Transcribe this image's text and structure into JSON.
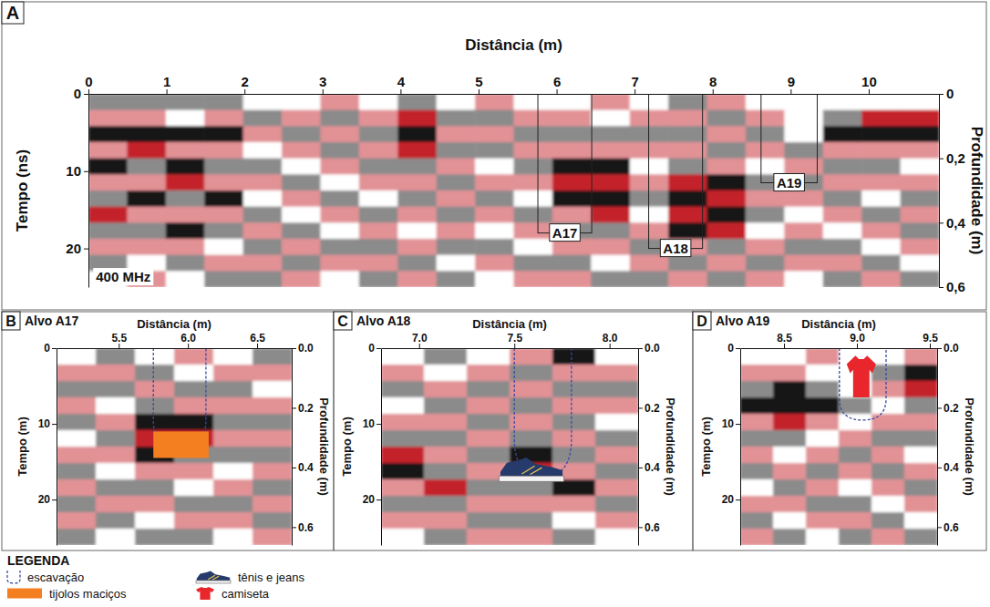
{
  "chart_data": [
    {
      "type": "heatmap",
      "panel": "A",
      "x_label": "Distância (m)",
      "y_label": "Tempo (ns)",
      "y2_label": "Profundidade (m)",
      "xlim": [
        0,
        10.9
      ],
      "xticks": [
        0,
        1,
        2,
        3,
        4,
        5,
        6,
        7,
        8,
        9,
        10
      ],
      "ylim": [
        0,
        25
      ],
      "yticks": [
        0,
        10,
        20
      ],
      "y2lim": [
        0,
        0.6
      ],
      "y2ticks": [
        0,
        {
          "value": 0.2,
          "label": "0,2"
        },
        {
          "value": 0.4,
          "label": "0,4"
        },
        {
          "value": 0.6,
          "label": "0,6"
        }
      ],
      "zlim": [
        -2,
        2
      ],
      "cells": [
        [
          -1,
          -1,
          -1,
          -1,
          0,
          0,
          1,
          0,
          -1,
          0,
          1,
          0,
          0,
          1,
          0,
          -1,
          1,
          0,
          0,
          0,
          0,
          0
        ],
        [
          1,
          1,
          0,
          1,
          -1,
          1,
          -1,
          1,
          2,
          -1,
          -1,
          1,
          1,
          0,
          1,
          1,
          -1,
          1,
          0,
          -1,
          2,
          2
        ],
        [
          -2,
          -2,
          -2,
          -2,
          1,
          -1,
          1,
          -1,
          -2,
          1,
          1,
          -1,
          -1,
          -1,
          -1,
          -1,
          1,
          -1,
          0,
          -2,
          -2,
          -2
        ],
        [
          1,
          2,
          1,
          1,
          0,
          1,
          -1,
          1,
          2,
          -1,
          -1,
          1,
          1,
          1,
          1,
          1,
          -1,
          1,
          -1,
          1,
          1,
          1
        ],
        [
          -2,
          -1,
          -2,
          -1,
          -1,
          0,
          1,
          -1,
          -1,
          1,
          0,
          -1,
          -2,
          -2,
          0,
          -1,
          1,
          0,
          1,
          -1,
          -1,
          0
        ],
        [
          1,
          1,
          2,
          1,
          1,
          -1,
          0,
          1,
          1,
          -1,
          1,
          1,
          2,
          2,
          1,
          2,
          -2,
          -1,
          -1,
          1,
          1,
          1
        ],
        [
          -1,
          -2,
          -1,
          -2,
          0,
          1,
          -1,
          0,
          -1,
          1,
          -1,
          0,
          -2,
          -2,
          -1,
          -2,
          2,
          1,
          1,
          -1,
          0,
          -1
        ],
        [
          2,
          1,
          1,
          1,
          -1,
          0,
          1,
          -1,
          1,
          -1,
          1,
          -1,
          1,
          2,
          0,
          2,
          -2,
          -1,
          0,
          1,
          -1,
          1
        ],
        [
          -1,
          -1,
          -2,
          -1,
          1,
          -1,
          0,
          1,
          0,
          1,
          0,
          1,
          -1,
          -1,
          1,
          -2,
          2,
          0,
          1,
          0,
          1,
          -1
        ],
        [
          1,
          1,
          1,
          0,
          -1,
          1,
          -1,
          -1,
          1,
          -1,
          -1,
          0,
          1,
          1,
          -1,
          1,
          -1,
          1,
          -1,
          -1,
          0,
          1
        ],
        [
          -1,
          0,
          -1,
          1,
          1,
          -1,
          1,
          1,
          -1,
          0,
          1,
          -1,
          -1,
          0,
          1,
          -1,
          1,
          -1,
          1,
          1,
          -1,
          0
        ],
        [
          0,
          1,
          0,
          -1,
          -1,
          1,
          0,
          -1,
          1,
          -1,
          0,
          1,
          1,
          -1,
          -1,
          1,
          -1,
          1,
          0,
          -1,
          1,
          -1
        ]
      ],
      "annotations": [
        {
          "text": "A17",
          "x": [
            5.76,
            6.45
          ],
          "y": [
            0,
            18
          ]
        },
        {
          "text": "A18",
          "x": [
            7.18,
            7.87
          ],
          "y": [
            0,
            20
          ]
        },
        {
          "text": "A19",
          "x": [
            8.62,
            9.34
          ],
          "y": [
            0,
            11.5
          ]
        },
        {
          "text": "400 MHz",
          "x": 0.05,
          "y": 24.3
        }
      ]
    },
    {
      "type": "heatmap",
      "panel": "B",
      "title": "Alvo A17",
      "x_label": "Distância (m)",
      "y_label": "Tempo (m)",
      "y2_label": "Profundidade (m)",
      "xlim": [
        5.05,
        6.75
      ],
      "xticks": [
        5.5,
        {
          "value": 6,
          "label": "6.0"
        },
        6.5
      ],
      "ylim": [
        0,
        26
      ],
      "yticks": [
        0,
        10,
        20
      ],
      "y2lim": [
        0,
        0.66
      ],
      "y2ticks": [
        {
          "value": 0,
          "label": "0.0"
        },
        0.2,
        0.4,
        0.6
      ],
      "zlim": [
        -2,
        2
      ],
      "cells": [
        [
          0,
          -1,
          0,
          1,
          0,
          -1
        ],
        [
          1,
          1,
          -1,
          0,
          1,
          1
        ],
        [
          -1,
          -1,
          1,
          -1,
          -1,
          0
        ],
        [
          1,
          0,
          -1,
          1,
          1,
          1
        ],
        [
          -1,
          1,
          -2,
          -2,
          -1,
          -1
        ],
        [
          0,
          -1,
          2,
          2,
          1,
          1
        ],
        [
          1,
          1,
          -2,
          -1,
          -1,
          -1
        ],
        [
          -1,
          0,
          1,
          1,
          0,
          1
        ],
        [
          1,
          -1,
          -1,
          0,
          1,
          -1
        ],
        [
          -1,
          1,
          1,
          -1,
          -1,
          1
        ],
        [
          1,
          -1,
          0,
          1,
          1,
          -1
        ],
        [
          -1,
          0,
          -1,
          -1,
          0,
          1
        ]
      ],
      "features": [
        {
          "marker": "dashed",
          "x": [
            5.75,
            6.13
          ],
          "y": [
            0,
            13.5
          ]
        },
        {
          "marker": "brick",
          "x": [
            5.75,
            6.15
          ],
          "y": [
            11,
            14.5
          ]
        }
      ]
    },
    {
      "type": "heatmap",
      "panel": "C",
      "title": "Alvo A18",
      "x_label": "Distância (m)",
      "y_label": "Tempo (m)",
      "y2_label": "Profundidade (m)",
      "xlim": [
        6.8,
        8.15
      ],
      "xticks": [
        {
          "value": 7,
          "label": "7.0"
        },
        7.5,
        {
          "value": 8,
          "label": "8.0"
        }
      ],
      "ylim": [
        0,
        26
      ],
      "yticks": [
        0,
        10,
        20
      ],
      "y2lim": [
        0,
        0.66
      ],
      "y2ticks": [
        {
          "value": 0,
          "label": "0.0"
        },
        0.2,
        0.4,
        0.6
      ],
      "zlim": [
        -2,
        2
      ],
      "cells": [
        [
          0,
          -1,
          0,
          1,
          -2,
          0
        ],
        [
          1,
          0,
          1,
          -1,
          1,
          1
        ],
        [
          -1,
          1,
          -1,
          1,
          -1,
          -1
        ],
        [
          0,
          -1,
          1,
          -1,
          1,
          1
        ],
        [
          1,
          1,
          -1,
          1,
          -1,
          0
        ],
        [
          -1,
          -1,
          1,
          -1,
          1,
          -1
        ],
        [
          2,
          1,
          -1,
          -2,
          -1,
          1
        ],
        [
          -2,
          -1,
          1,
          2,
          1,
          -1
        ],
        [
          1,
          2,
          -1,
          -1,
          -2,
          1
        ],
        [
          -1,
          -1,
          1,
          1,
          1,
          -1
        ],
        [
          1,
          1,
          -1,
          -1,
          0,
          1
        ],
        [
          0,
          -1,
          1,
          1,
          -1,
          0
        ]
      ],
      "features": [
        {
          "marker": "dashed",
          "x": [
            7.5,
            7.8
          ],
          "y": [
            0,
            17
          ]
        },
        {
          "marker": "sneaker",
          "x": [
            7.42,
            7.76
          ],
          "y": [
            14.3,
            17.6
          ]
        }
      ]
    },
    {
      "type": "heatmap",
      "panel": "D",
      "title": "Alvo A19",
      "x_label": "Distância (m)",
      "y_label": "Tempo (m)",
      "y2_label": "Profundidade (m)",
      "xlim": [
        8.2,
        9.55
      ],
      "xticks": [
        8.5,
        {
          "value": 9,
          "label": "9.0"
        },
        9.5
      ],
      "ylim": [
        0,
        26
      ],
      "yticks": [
        0,
        10,
        20
      ],
      "y2lim": [
        0,
        0.66
      ],
      "y2ticks": [
        {
          "value": 0,
          "label": "0.0"
        },
        0.2,
        0.4,
        0.6
      ],
      "zlim": [
        -2,
        2
      ],
      "cells": [
        [
          0,
          0,
          1,
          0,
          0,
          1
        ],
        [
          1,
          1,
          0,
          0,
          -1,
          -2
        ],
        [
          -1,
          -2,
          -1,
          0,
          1,
          2
        ],
        [
          -2,
          -2,
          -2,
          -1,
          0,
          -1
        ],
        [
          1,
          2,
          1,
          0,
          1,
          1
        ],
        [
          -1,
          -1,
          0,
          1,
          -1,
          -1
        ],
        [
          1,
          0,
          1,
          -1,
          1,
          0
        ],
        [
          -1,
          1,
          -1,
          1,
          -1,
          1
        ],
        [
          0,
          -1,
          1,
          0,
          1,
          -1
        ],
        [
          1,
          1,
          -1,
          -1,
          0,
          1
        ],
        [
          -1,
          0,
          1,
          1,
          -1,
          0
        ],
        [
          1,
          -1,
          0,
          -1,
          1,
          -1
        ]
      ],
      "features": [
        {
          "marker": "dashed",
          "x": [
            8.88,
            9.2
          ],
          "y": [
            0,
            9.5
          ]
        },
        {
          "marker": "shirt",
          "x": [
            8.93,
            9.13
          ],
          "y": [
            1,
            6.5
          ]
        }
      ]
    }
  ],
  "key": {
    "title": "LEGENDA",
    "items": [
      {
        "label": "escavação",
        "marker": "dashed"
      },
      {
        "label": "tênis e jeans",
        "marker": "sneaker"
      },
      {
        "label": "tijolos maciços",
        "marker": "brick"
      },
      {
        "label": "camiseta",
        "marker": "shirt"
      }
    ]
  }
}
